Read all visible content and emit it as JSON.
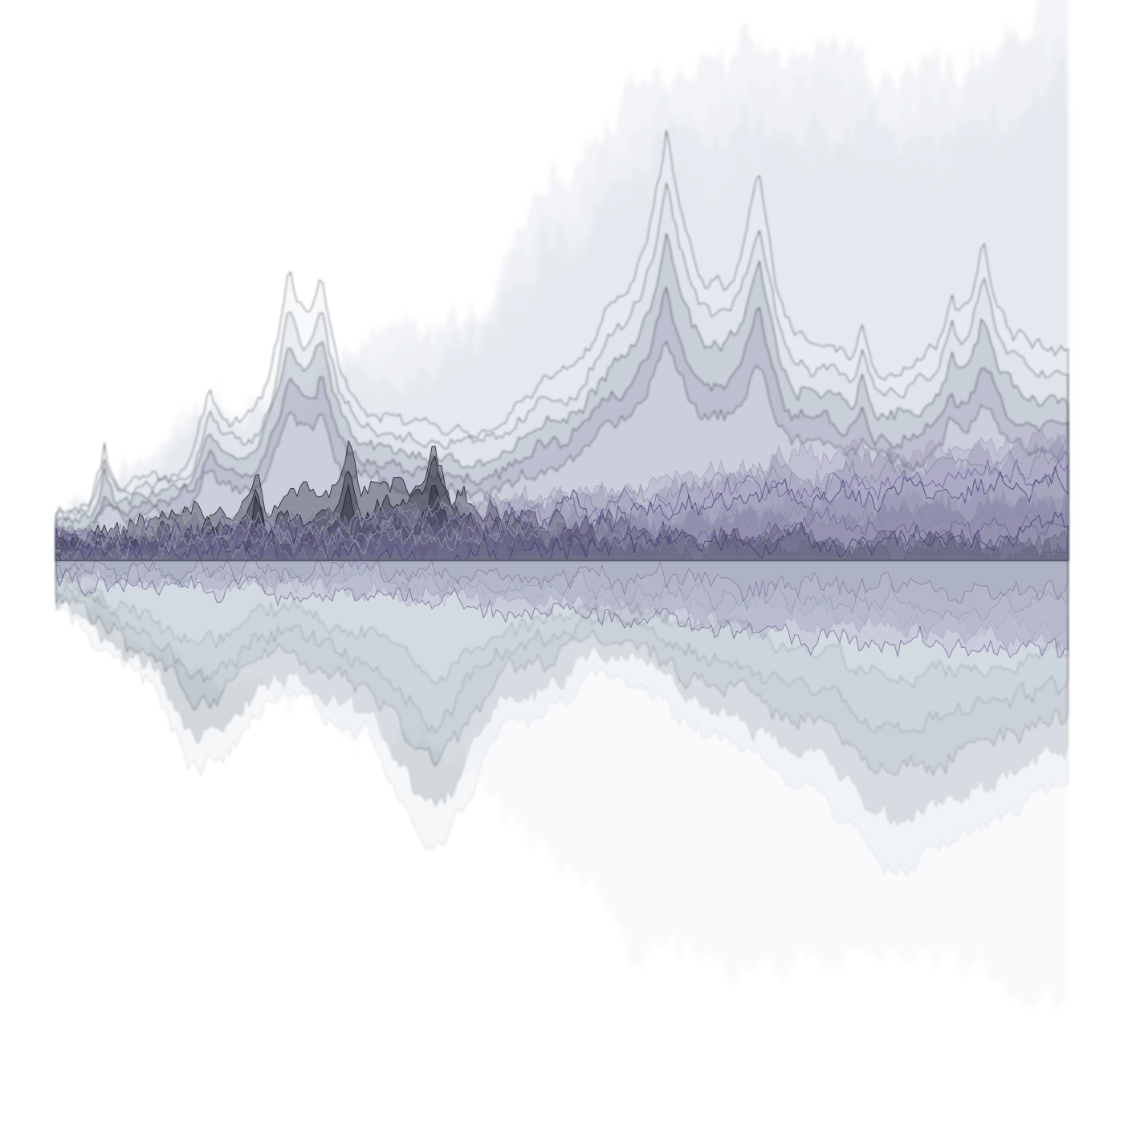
{
  "artwork": {
    "subject": "abstract-waveform-mountain-landscape",
    "background_color": "#ffffff",
    "palette": {
      "mist_light": "#e9edf2",
      "mist_blue": "#cfd9e3",
      "slate": "#9aa8b4",
      "lavender": "#a79bbd",
      "violet": "#6a5a9a",
      "indigo": "#3f3a6e",
      "ink": "#1b1d2c",
      "teal_gray": "#7d8f96",
      "reflection_pale": "#dfe6ea"
    }
  }
}
